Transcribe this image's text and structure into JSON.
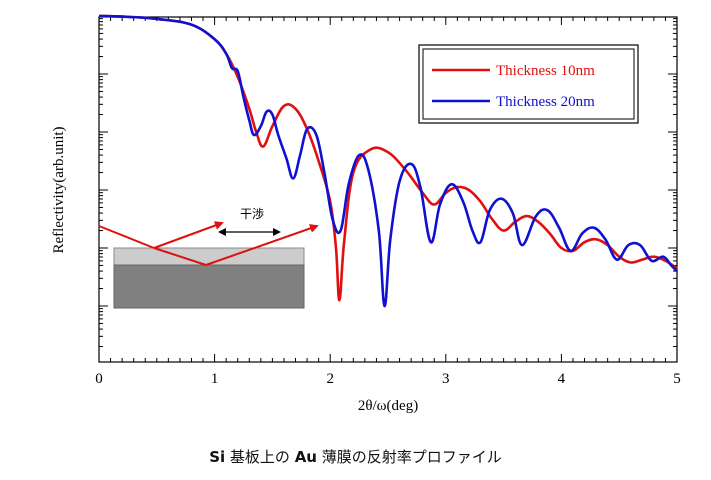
{
  "chart_data": {
    "type": "line",
    "xlabel": "2θ/ω(deg)",
    "ylabel": "Reflectivity(arb.unit)",
    "xlim": [
      0,
      5
    ],
    "x_ticks": [
      "0",
      "1",
      "2",
      "3",
      "4",
      "5"
    ],
    "y_scale": "log",
    "y_tick_labels_shown": false,
    "grid": false,
    "legend_position": "top-right",
    "series": [
      {
        "name": "Thickness 10nm",
        "color": "#e01010",
        "x": [
          0,
          0.2,
          0.5,
          0.8,
          1.0,
          1.1,
          1.2,
          1.3,
          1.36,
          1.42,
          1.5,
          1.6,
          1.7,
          1.8,
          1.9,
          2.0,
          2.05,
          2.08,
          2.12,
          2.2,
          2.35,
          2.5,
          2.65,
          2.8,
          2.9,
          3.0,
          3.1,
          3.2,
          3.3,
          3.4,
          3.5,
          3.6,
          3.7,
          3.8,
          3.9,
          4.0,
          4.1,
          4.2,
          4.3,
          4.4,
          4.5,
          4.6,
          4.7,
          4.8,
          4.9,
          5.0
        ],
        "y_decades": [
          5.0,
          4.99,
          4.95,
          4.85,
          4.6,
          4.35,
          3.95,
          3.4,
          3.0,
          2.75,
          3.1,
          3.45,
          3.4,
          3.05,
          2.5,
          1.8,
          1.0,
          0.1,
          1.1,
          2.3,
          2.7,
          2.65,
          2.35,
          1.95,
          1.75,
          1.95,
          2.05,
          2.0,
          1.8,
          1.5,
          1.3,
          1.45,
          1.55,
          1.45,
          1.25,
          1.0,
          0.95,
          1.1,
          1.15,
          1.05,
          0.85,
          0.75,
          0.8,
          0.85,
          0.78,
          0.65
        ]
      },
      {
        "name": "Thickness 20nm",
        "color": "#1010d0",
        "x": [
          0,
          0.2,
          0.5,
          0.8,
          1.0,
          1.1,
          1.15,
          1.2,
          1.25,
          1.3,
          1.34,
          1.4,
          1.45,
          1.5,
          1.55,
          1.62,
          1.68,
          1.74,
          1.8,
          1.88,
          1.95,
          2.02,
          2.09,
          2.16,
          2.25,
          2.33,
          2.42,
          2.47,
          2.52,
          2.6,
          2.7,
          2.78,
          2.87,
          2.95,
          3.05,
          3.15,
          3.23,
          3.3,
          3.38,
          3.48,
          3.58,
          3.66,
          3.78,
          3.88,
          3.98,
          4.08,
          4.18,
          4.28,
          4.38,
          4.48,
          4.58,
          4.68,
          4.78,
          4.88,
          4.95,
          5.0
        ],
        "y_decades": [
          5.0,
          4.99,
          4.95,
          4.85,
          4.6,
          4.35,
          4.1,
          4.05,
          3.6,
          3.2,
          2.95,
          3.1,
          3.35,
          3.3,
          2.95,
          2.55,
          2.2,
          2.6,
          3.05,
          2.95,
          2.3,
          1.5,
          1.3,
          2.1,
          2.6,
          2.35,
          1.3,
          0.0,
          1.15,
          2.15,
          2.45,
          2.05,
          1.1,
          1.75,
          2.1,
          1.8,
          1.3,
          1.1,
          1.65,
          1.85,
          1.6,
          1.05,
          1.55,
          1.65,
          1.35,
          0.95,
          1.25,
          1.35,
          1.15,
          0.8,
          1.05,
          1.05,
          0.78,
          0.85,
          0.7,
          0.6
        ]
      }
    ]
  },
  "inset": {
    "label": "干渉"
  },
  "caption": {
    "part1": "Si",
    "part2": " 基板上の ",
    "part3": "Au",
    "part4": " 薄膜の反射率プロファイル"
  }
}
